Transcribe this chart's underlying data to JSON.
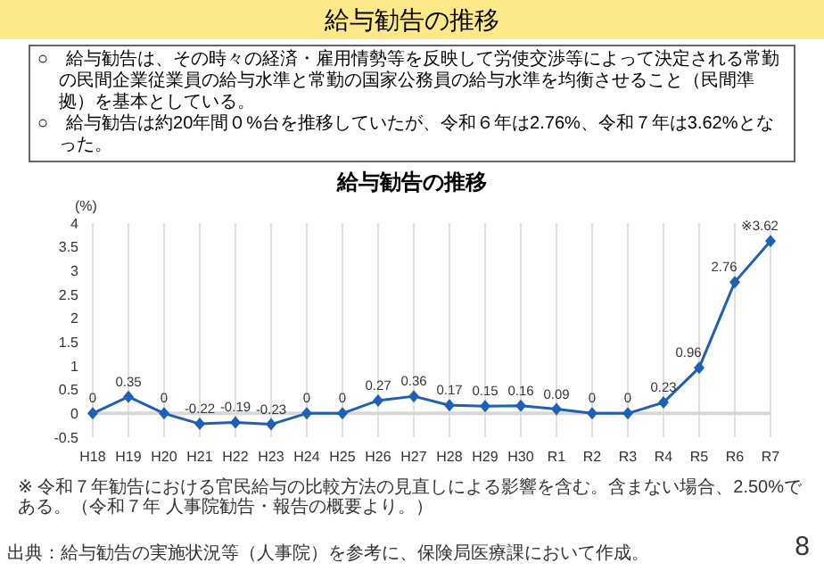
{
  "chart_data": {
    "type": "line",
    "title": "給与勧告の推移",
    "subtitle": "給与勧告の推移",
    "ylabel": "(%)",
    "categories": [
      "H18",
      "H19",
      "H20",
      "H21",
      "H22",
      "H23",
      "H24",
      "H25",
      "H26",
      "H27",
      "H28",
      "H29",
      "H30",
      "R1",
      "R2",
      "R3",
      "R4",
      "R5",
      "R6",
      "R7"
    ],
    "series": [
      {
        "color": "#1f5fb4",
        "values": [
          0,
          0.35,
          0,
          -0.22,
          -0.19,
          -0.23,
          0,
          0,
          0.27,
          0.36,
          0.17,
          0.15,
          0.16,
          0.09,
          0,
          0,
          0.23,
          0.96,
          2.76,
          3.62
        ],
        "value_labels": [
          "0",
          "0.35",
          "0",
          "-0.22",
          "-0.19",
          "-0.23",
          "0",
          "0",
          "0.27",
          "0.36",
          "0.17",
          "0.15",
          "0.16",
          "0.09",
          "0",
          "0",
          "0.23",
          "0.96",
          "2.76",
          "※3.62"
        ]
      }
    ],
    "ylim": [
      -0.5,
      4
    ],
    "yticks": [
      -0.5,
      0,
      0.5,
      1,
      1.5,
      2,
      2.5,
      3,
      3.5,
      4
    ],
    "grid": "x",
    "marker": "diamond",
    "line_style": "solid",
    "legend": false,
    "annotations": [
      "○　給与勧告は、その時々の経済・雇用情勢等を反映して労使交渉等によって決定される常勤の民間企業従業員の給与水準と常勤の国家公務員の給与水準を均衡させること（民間準拠）を基本としている。",
      "○　給与勧告は約20年間０%台を推移していたが、令和６年は2.76%、令和７年は3.62%となった。",
      "※ 令和７年勧告における官民給与の比較方法の見直しによる影響を含む。含まない場合、2.50%である。（令和７年 人事院勧告・報告の概要より。）",
      "出典：給与勧告の実施状況等（人事院）を参考に、保険局医療課において作成。",
      "8"
    ]
  }
}
